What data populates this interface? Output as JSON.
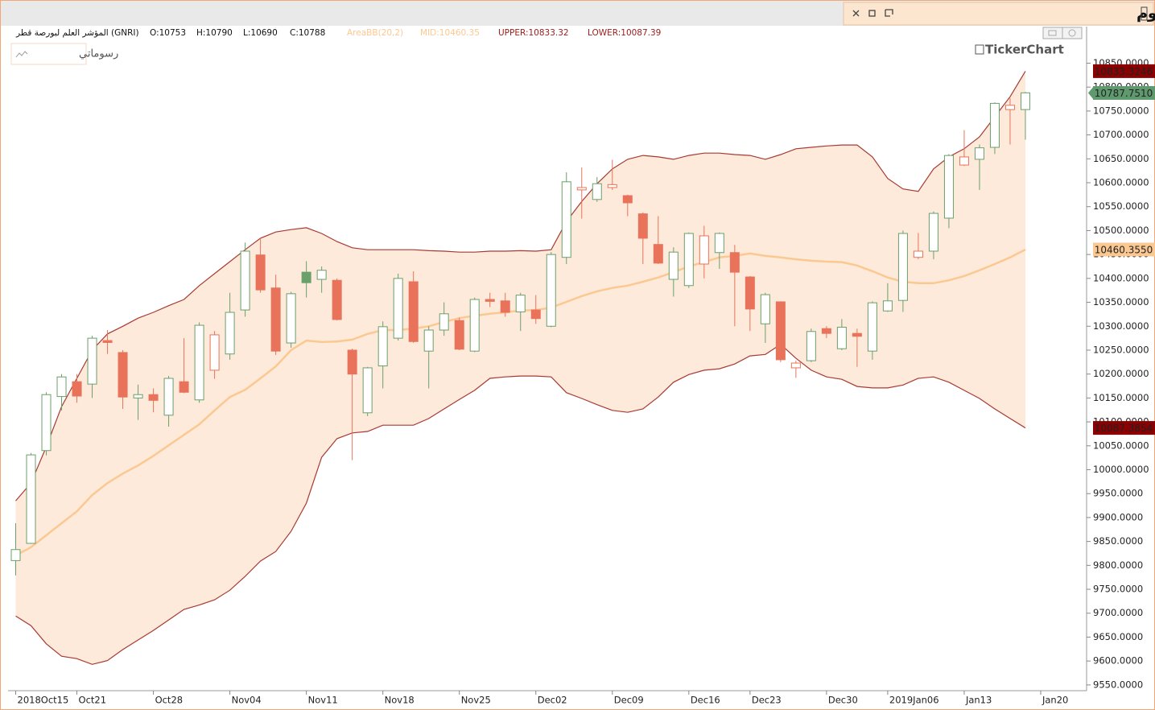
{
  "header": {
    "title": "المؤشر العام لبورصة قطر - يوم"
  },
  "info": {
    "symbol": "المؤشر العلم لبورصة قطر (GNRI)",
    "ohlc": [
      "O:10753",
      "H:10790",
      "L:10690",
      "C:10788"
    ],
    "indicator": "AreaBB(20,2)",
    "mid": "MID:10460.35",
    "upper": "UPPER:10833.32",
    "lower": "LOWER:10087.39"
  },
  "drawings_button": "رسوماتي",
  "logo": "TickerChart",
  "chart_data": {
    "type": "candlestick",
    "open": [
      9810,
      9846,
      10040,
      10153,
      10184,
      10179,
      10270,
      10245,
      10150,
      10157,
      10114,
      10184,
      10146,
      10208,
      10242,
      10334,
      10449,
      10380,
      10265,
      10413,
      10398,
      10396,
      10250,
      10119,
      10217,
      10275,
      10393,
      10248,
      10292,
      10312,
      10248,
      10356,
      10353,
      10330,
      10334,
      10300,
      10444,
      10585,
      10565,
      10590,
      10573,
      10535,
      10471,
      10398,
      10385,
      10430,
      10454,
      10454,
      10403,
      10305,
      10351,
      10213,
      10228,
      10295,
      10253,
      10285,
      10248,
      10332,
      10354,
      10444,
      10457,
      10526,
      10637,
      10649,
      10674,
      10753,
      10753
    ],
    "high": [
      9888,
      10035,
      10162,
      10200,
      10200,
      10280,
      10292,
      10250,
      10178,
      10170,
      10196,
      10275,
      10308,
      10290,
      10370,
      10475,
      10485,
      10408,
      10372,
      10436,
      10425,
      10400,
      10253,
      10215,
      10310,
      10410,
      10415,
      10300,
      10350,
      10318,
      10360,
      10370,
      10370,
      10370,
      10365,
      10455,
      10622,
      10632,
      10612,
      10648,
      10575,
      10538,
      10530,
      10465,
      10496,
      10510,
      10496,
      10470,
      10405,
      10370,
      10352,
      10228,
      10295,
      10300,
      10315,
      10295,
      10352,
      10390,
      10500,
      10495,
      10540,
      10660,
      10710,
      10680,
      10768,
      10777,
      10790
    ],
    "low": [
      9779,
      9845,
      10030,
      10124,
      10140,
      10150,
      10242,
      10127,
      10104,
      10120,
      10090,
      10160,
      10140,
      10190,
      10230,
      10320,
      10370,
      10240,
      10255,
      10360,
      10370,
      10312,
      10020,
      10112,
      10170,
      10270,
      10265,
      10170,
      10280,
      10250,
      10246,
      10340,
      10320,
      10290,
      10305,
      10298,
      10430,
      10525,
      10560,
      10585,
      10530,
      10430,
      10430,
      10362,
      10380,
      10400,
      10420,
      10300,
      10290,
      10265,
      10225,
      10192,
      10225,
      10275,
      10250,
      10215,
      10230,
      10330,
      10330,
      10440,
      10440,
      10505,
      10635,
      10585,
      10660,
      10680,
      10690
    ],
    "close": [
      9833,
      10031,
      10157,
      10194,
      10154,
      10275,
      10266,
      10152,
      10157,
      10145,
      10191,
      10162,
      10302,
      10282,
      10329,
      10457,
      10376,
      10248,
      10368,
      10391,
      10417,
      10314,
      10200,
      10213,
      10299,
      10400,
      10268,
      10292,
      10326,
      10252,
      10356,
      10352,
      10329,
      10365,
      10316,
      10450,
      10602,
      10590,
      10598,
      10596,
      10558,
      10484,
      10432,
      10455,
      10494,
      10489,
      10494,
      10413,
      10336,
      10366,
      10230,
      10223,
      10289,
      10285,
      10298,
      10279,
      10349,
      10353,
      10494,
      10457,
      10536,
      10657,
      10654,
      10673,
      10766,
      10762,
      10788
    ],
    "up_color": "#6aa06a",
    "down_color": "#e8735a",
    "neutral_fill": "#ffffff",
    "bands": {
      "upper": [
        9935,
        9972,
        10048,
        10132,
        10191,
        10250,
        10284,
        10300,
        10317,
        10329,
        10343,
        10356,
        10385,
        10410,
        10435,
        10460,
        10484,
        10497,
        10502,
        10506,
        10494,
        10477,
        10464,
        10460,
        10460,
        10460,
        10460,
        10458,
        10457,
        10455,
        10455,
        10457,
        10457,
        10458,
        10457,
        10460,
        10519,
        10561,
        10598,
        10629,
        10649,
        10657,
        10654,
        10649,
        10657,
        10662,
        10662,
        10659,
        10657,
        10649,
        10659,
        10671,
        10674,
        10677,
        10679,
        10679,
        10654,
        10609,
        10587,
        10582,
        10629,
        10654,
        10671,
        10696,
        10738,
        10780,
        10833.32
      ],
      "mid": [
        9821,
        9838,
        9863,
        9888,
        9913,
        9947,
        9972,
        9992,
        10009,
        10029,
        10051,
        10073,
        10095,
        10124,
        10152,
        10167,
        10191,
        10216,
        10250,
        10270,
        10267,
        10268,
        10272,
        10284,
        10292,
        10292,
        10295,
        10300,
        10309,
        10317,
        10322,
        10326,
        10329,
        10333,
        10334,
        10339,
        10351,
        10363,
        10373,
        10380,
        10385,
        10393,
        10402,
        10413,
        10425,
        10434,
        10444,
        10447,
        10452,
        10447,
        10444,
        10440,
        10437,
        10435,
        10434,
        10427,
        10415,
        10402,
        10393,
        10390,
        10390,
        10396,
        10405,
        10417,
        10430,
        10444,
        10460.35
      ],
      "lower": [
        9694,
        9674,
        9636,
        9610,
        9605,
        9593,
        9601,
        9624,
        9644,
        9664,
        9686,
        9708,
        9717,
        9728,
        9748,
        9777,
        9809,
        9829,
        9871,
        9930,
        10026,
        10065,
        10077,
        10080,
        10093,
        10093,
        10093,
        10107,
        10127,
        10147,
        10166,
        10191,
        10194,
        10196,
        10196,
        10194,
        10161,
        10149,
        10136,
        10124,
        10120,
        10127,
        10152,
        10183,
        10199,
        10208,
        10211,
        10221,
        10238,
        10241,
        10262,
        10233,
        10208,
        10194,
        10189,
        10174,
        10171,
        10171,
        10177,
        10191,
        10194,
        10183,
        10166,
        10149,
        10127,
        10107,
        10087.39
      ],
      "band_color": "#a83a32",
      "mid_color": "#fcc892",
      "fill": "#fdeadb"
    },
    "xlim": [
      -0.5,
      70
    ],
    "xticks": [
      {
        "value": 0,
        "label": "2018Oct15"
      },
      {
        "value": 4,
        "label": "Oct21"
      },
      {
        "value": 9,
        "label": "Oct28"
      },
      {
        "value": 14,
        "label": "Nov04"
      },
      {
        "value": 19,
        "label": "Nov11"
      },
      {
        "value": 24,
        "label": "Nov18"
      },
      {
        "value": 29,
        "label": "Nov25"
      },
      {
        "value": 34,
        "label": "Dec02"
      },
      {
        "value": 39,
        "label": "Dec09"
      },
      {
        "value": 44,
        "label": "Dec16"
      },
      {
        "value": 48,
        "label": "Dec23"
      },
      {
        "value": 53,
        "label": "Dec30"
      },
      {
        "value": 57,
        "label": "2019Jan06"
      },
      {
        "value": 62,
        "label": "Jan13"
      },
      {
        "value": 67,
        "label": "Jan20"
      }
    ],
    "ylim": [
      9538,
      10871
    ],
    "yticks": [
      {
        "value": 9550,
        "label": "9550.0000"
      },
      {
        "value": 9600,
        "label": "9600.0000"
      },
      {
        "value": 9650,
        "label": "9650.0000"
      },
      {
        "value": 9700,
        "label": "9700.0000"
      },
      {
        "value": 9750,
        "label": "9750.0000"
      },
      {
        "value": 9800,
        "label": "9800.0000"
      },
      {
        "value": 9850,
        "label": "9850.0000"
      },
      {
        "value": 9900,
        "label": "9900.0000"
      },
      {
        "value": 9950,
        "label": "9950.0000"
      },
      {
        "value": 10000,
        "label": "10000.0000"
      },
      {
        "value": 10050,
        "label": "10050.0000"
      },
      {
        "value": 10100,
        "label": "10100.0000"
      },
      {
        "value": 10150,
        "label": "10150.0000"
      },
      {
        "value": 10200,
        "label": "10200.0000"
      },
      {
        "value": 10250,
        "label": "10250.0000"
      },
      {
        "value": 10300,
        "label": "10300.0000"
      },
      {
        "value": 10350,
        "label": "10350.0000"
      },
      {
        "value": 10400,
        "label": "10400.0000"
      },
      {
        "value": 10450,
        "label": "10450.0000"
      },
      {
        "value": 10500,
        "label": "10500.0000"
      },
      {
        "value": 10550,
        "label": "10550.0000"
      },
      {
        "value": 10600,
        "label": "10600.0000"
      },
      {
        "value": 10650,
        "label": "10650.0000"
      },
      {
        "value": 10700,
        "label": "10700.0000"
      },
      {
        "value": 10750,
        "label": "10750.0000"
      },
      {
        "value": 10800,
        "label": "10800.0000"
      },
      {
        "value": 10850,
        "label": "10850.0000"
      }
    ],
    "price_labels": [
      {
        "value": 10833.3246,
        "color": "#8b0000",
        "text_color": "#ffffff"
      },
      {
        "value": 10787.751,
        "label": "10787.7510",
        "color": "#5f9a6e",
        "text_color": "#ffffff"
      },
      {
        "value": 10460.355,
        "label": "10460.3550",
        "color": "#fcc892",
        "text_color": "#3a2a1a"
      },
      {
        "value": 10087.3854,
        "color": "#8b0000",
        "text_color": "#ffffff"
      }
    ]
  }
}
